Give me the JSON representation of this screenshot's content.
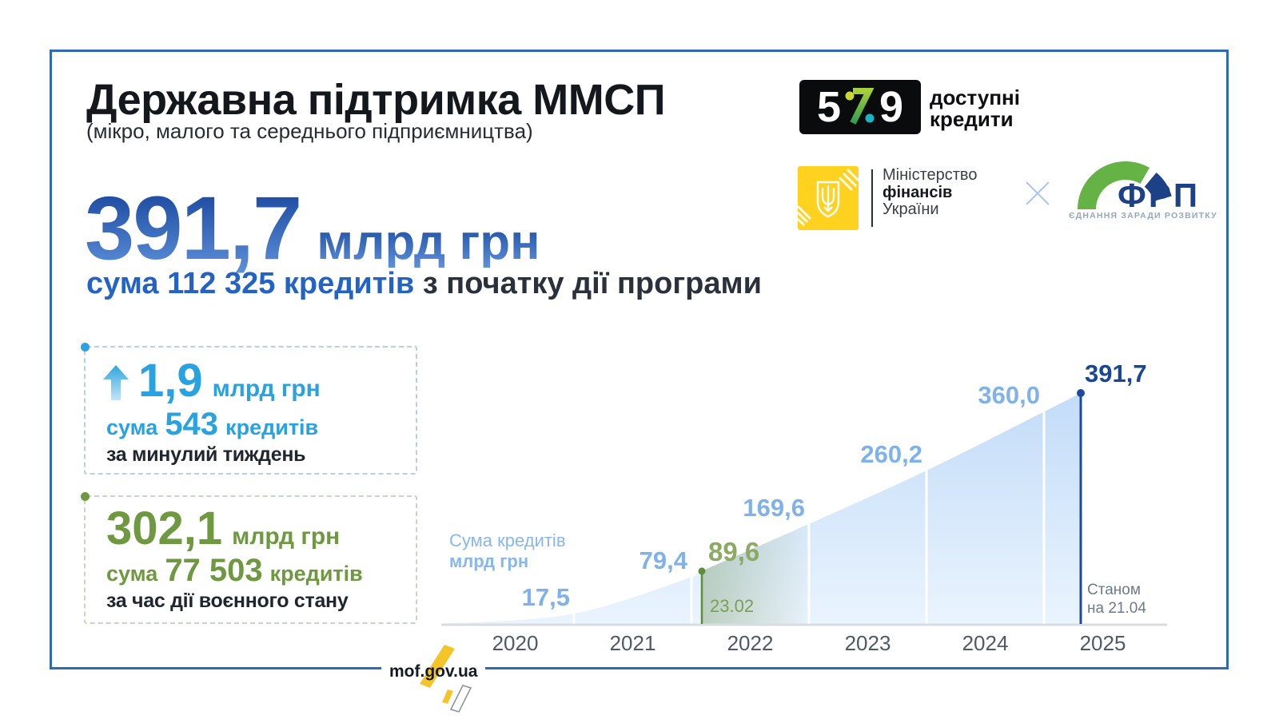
{
  "header": {
    "title": "Державна підтримка ММСП",
    "subtitle": "(мікро, малого та середнього підприємництва)",
    "total_amount": "391,7",
    "total_unit": "млрд грн",
    "total_line": {
      "prefix": "сума",
      "loans": "112 325",
      "loans_word": "кредитів",
      "suffix": "з початку дії програми"
    }
  },
  "logos": {
    "program": {
      "digit_left": "5",
      "digit_right": "9",
      "caption_line1": "доступні",
      "caption_line2": "кредити"
    },
    "ministry": {
      "line1": "Міністерство",
      "line2": "фінансів",
      "line3": "України"
    },
    "frp": {
      "abbr": "ФРП",
      "tagline": "ЄДНАННЯ ЗАРАДИ РОЗВИТКУ"
    }
  },
  "cards": {
    "weekly": {
      "amount": "1,9",
      "unit": "млрд грн",
      "prefix": "сума",
      "loans": "543",
      "loans_word": "кредитів",
      "period": "за минулий тиждень"
    },
    "wartime": {
      "amount": "302,1",
      "unit": "млрд грн",
      "prefix": "сума",
      "loans": "77 503",
      "loans_word": "кредитів",
      "period": "за час дії воєнного стану"
    }
  },
  "chart_data": {
    "type": "area",
    "legend_line1": "Сума кредитів",
    "legend_line2": "млрд грн",
    "x_labels": [
      "2020",
      "2021",
      "2022",
      "2023",
      "2024",
      "2025"
    ],
    "ylim": [
      0,
      400
    ],
    "points": [
      {
        "x": "2020-start",
        "value": 0,
        "label": null
      },
      {
        "x": "2020-end",
        "value": 17.5,
        "label": "17,5"
      },
      {
        "x": "2021-end",
        "value": 79.4,
        "label": "79,4"
      },
      {
        "x": "2022-end",
        "value": 169.6,
        "label": "169,6"
      },
      {
        "x": "2023-end",
        "value": 260.2,
        "label": "260,2"
      },
      {
        "x": "2024-end",
        "value": 360.0,
        "label": "360,0"
      },
      {
        "x": "2025-04-21",
        "value": 391.7,
        "label": "391,7"
      }
    ],
    "war_marker": {
      "x": "2022-02-23",
      "value": 89.6,
      "label": "89,6",
      "date_label": "23.02"
    },
    "as_of_line1": "Станом",
    "as_of_line2": "на 21.04",
    "colors": {
      "area_top": "#c3dcf8",
      "area_bottom": "#eaf4fe",
      "value_label": "#7fb2ea",
      "war_green": "#5c8f3a",
      "war_label": "#8caa63",
      "peak_navy": "#1c4b9c",
      "axis": "#d9dde2"
    }
  },
  "footer": {
    "site": "mof.gov.ua"
  },
  "accents": {
    "frame_blue": "#2e6bb4",
    "azure": "#29a2e1",
    "olive": "#6f9940",
    "brand_yellow": "#ffd21f"
  }
}
